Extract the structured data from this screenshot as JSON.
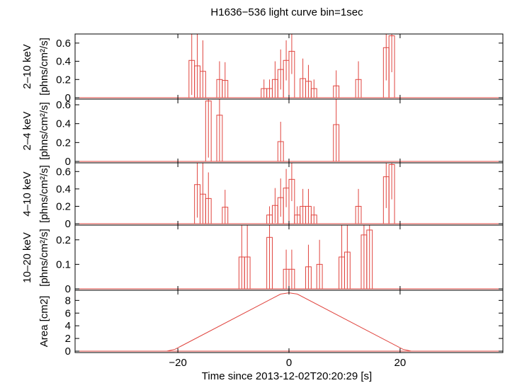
{
  "chart_data": {
    "type": "line",
    "title": "H1636−536 light curve bin=1sec",
    "xlabel": "Time since 2013-12-02T20:20:29 [s]",
    "xlim": [
      -38.5,
      38.5
    ],
    "xticks": [
      -20,
      0,
      20
    ],
    "xtick_labels": [
      "−20",
      "0",
      "20"
    ],
    "bin_width": 1,
    "grid": false,
    "line_color": "#e0453f",
    "panels": [
      {
        "id": "2-10",
        "ylabel_lines": [
          "2–10 keV",
          "[phns/cm²/s]"
        ],
        "ylim": [
          0,
          0.7
        ],
        "yticks": [
          0,
          0.2,
          0.4,
          0.6
        ],
        "ytick_labels": [
          "0",
          "0.2",
          "0.4",
          "0.6"
        ],
        "bins": [
          {
            "x": -17.5,
            "y": 0.41,
            "err": 0.38
          },
          {
            "x": -16.5,
            "y": 0.35,
            "err": 0.36
          },
          {
            "x": -15.5,
            "y": 0.29,
            "err": 0.34
          },
          {
            "x": -12.5,
            "y": 0.2,
            "err": 0.2
          },
          {
            "x": -11.5,
            "y": 0.19,
            "err": 0.2
          },
          {
            "x": -4.5,
            "y": 0.1,
            "err": 0.1
          },
          {
            "x": -3.5,
            "y": 0.1,
            "err": 0.1
          },
          {
            "x": -2.5,
            "y": 0.2,
            "err": 0.2
          },
          {
            "x": -1.5,
            "y": 0.31,
            "err": 0.22
          },
          {
            "x": -0.5,
            "y": 0.41,
            "err": 0.22
          },
          {
            "x": 0.5,
            "y": 0.51,
            "err": 0.25
          },
          {
            "x": 2.5,
            "y": 0.21,
            "err": 0.22
          },
          {
            "x": 3.5,
            "y": 0.18,
            "err": 0.18
          },
          {
            "x": 4.5,
            "y": 0.1,
            "err": 0.1
          },
          {
            "x": 8.5,
            "y": 0.13,
            "err": 0.17
          },
          {
            "x": 12.5,
            "y": 0.2,
            "err": 0.2
          },
          {
            "x": 17.5,
            "y": 0.55,
            "err": 0.36
          },
          {
            "x": 18.5,
            "y": 0.68,
            "err": 0.4
          }
        ]
      },
      {
        "id": "2-4",
        "ylabel_lines": [
          "2–4 keV",
          "[phns/cm²/s]"
        ],
        "ylim": [
          0,
          0.66
        ],
        "yticks": [
          0,
          0.2,
          0.4,
          0.6
        ],
        "ytick_labels": [
          "0",
          "0.2",
          "0.4",
          "0.6"
        ],
        "bins": [
          {
            "x": -14.5,
            "y": 0.64,
            "err": 0.6
          },
          {
            "x": -12.5,
            "y": 0.49,
            "err": 0.5
          },
          {
            "x": -1.5,
            "y": 0.21,
            "err": 0.21
          },
          {
            "x": 8.5,
            "y": 0.39,
            "err": 0.4
          }
        ]
      },
      {
        "id": "4-10",
        "ylabel_lines": [
          "4–10 keV",
          "[phns/cm²/s]"
        ],
        "ylim": [
          0,
          0.7
        ],
        "yticks": [
          0,
          0.2,
          0.4,
          0.6
        ],
        "ytick_labels": [
          "0",
          "0.2",
          "0.4",
          "0.6"
        ],
        "bins": [
          {
            "x": -16.5,
            "y": 0.45,
            "err": 0.38
          },
          {
            "x": -15.5,
            "y": 0.34,
            "err": 0.36
          },
          {
            "x": -14.5,
            "y": 0.29,
            "err": 0.3
          },
          {
            "x": -11.5,
            "y": 0.19,
            "err": 0.2
          },
          {
            "x": -3.5,
            "y": 0.1,
            "err": 0.1
          },
          {
            "x": -2.5,
            "y": 0.21,
            "err": 0.2
          },
          {
            "x": -1.5,
            "y": 0.3,
            "err": 0.22
          },
          {
            "x": -0.5,
            "y": 0.41,
            "err": 0.22
          },
          {
            "x": 0.5,
            "y": 0.51,
            "err": 0.25
          },
          {
            "x": 1.5,
            "y": 0.1,
            "err": 0.1
          },
          {
            "x": 2.5,
            "y": 0.2,
            "err": 0.2
          },
          {
            "x": 3.5,
            "y": 0.2,
            "err": 0.2
          },
          {
            "x": 4.5,
            "y": 0.1,
            "err": 0.1
          },
          {
            "x": 12.5,
            "y": 0.2,
            "err": 0.2
          },
          {
            "x": 17.5,
            "y": 0.54,
            "err": 0.36
          },
          {
            "x": 18.5,
            "y": 0.68,
            "err": 0.4
          }
        ]
      },
      {
        "id": "10-20",
        "ylabel_lines": [
          "10–20 keV",
          "[phns/cm²/s]"
        ],
        "ylim": [
          0,
          0.26
        ],
        "yticks": [
          0,
          0.1,
          0.2
        ],
        "ytick_labels": [
          "0",
          "0.1",
          "0.2"
        ],
        "bins": [
          {
            "x": -8.5,
            "y": 0.13,
            "err": 0.13
          },
          {
            "x": -7.5,
            "y": 0.13,
            "err": 0.13
          },
          {
            "x": -3.5,
            "y": 0.21,
            "err": 0.21
          },
          {
            "x": -0.5,
            "y": 0.08,
            "err": 0.08
          },
          {
            "x": 0.5,
            "y": 0.08,
            "err": 0.08
          },
          {
            "x": 3.5,
            "y": 0.09,
            "err": 0.09
          },
          {
            "x": 5.5,
            "y": 0.1,
            "err": 0.1
          },
          {
            "x": 9.5,
            "y": 0.13,
            "err": 0.13
          },
          {
            "x": 10.5,
            "y": 0.15,
            "err": 0.15
          },
          {
            "x": 13.5,
            "y": 0.22,
            "err": 0.22
          },
          {
            "x": 14.5,
            "y": 0.24,
            "err": 0.24
          }
        ]
      },
      {
        "id": "area",
        "ylabel_lines": [
          "Area [cm2]"
        ],
        "ylim": [
          0,
          9.6
        ],
        "yticks": [
          0,
          2,
          4,
          6,
          8
        ],
        "ytick_labels": [
          "0",
          "2",
          "4",
          "6",
          "8"
        ],
        "curve": {
          "x": [
            -38.5,
            -22,
            -20.5,
            -1.5,
            0,
            1.5,
            20.5,
            22,
            38.5
          ],
          "y": [
            0,
            0,
            0.3,
            9.0,
            9.2,
            9.0,
            0.3,
            0,
            0
          ]
        }
      }
    ]
  }
}
